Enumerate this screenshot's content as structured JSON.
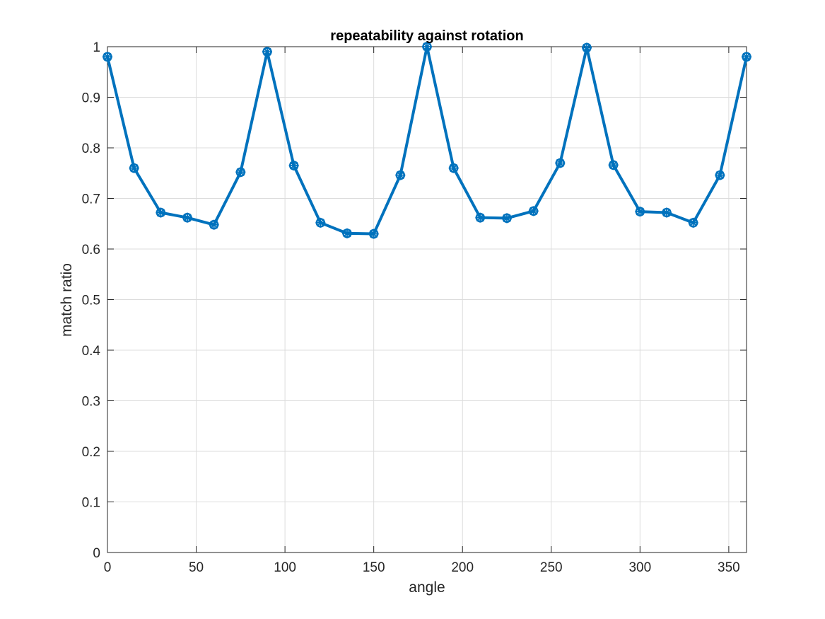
{
  "chart_data": {
    "type": "line",
    "title": "repeatability against rotation",
    "xlabel": "angle",
    "ylabel": "match ratio",
    "xlim": [
      0,
      360
    ],
    "ylim": [
      0,
      1
    ],
    "xticks": [
      0,
      50,
      100,
      150,
      200,
      250,
      300,
      350
    ],
    "yticks": [
      0,
      0.1,
      0.2,
      0.3,
      0.4,
      0.5,
      0.6,
      0.7,
      0.8,
      0.9,
      1
    ],
    "grid": true,
    "box": true,
    "line_color": "#0072BD",
    "marker": "circle-asterisk",
    "series": [
      {
        "x": [
          0,
          15,
          30,
          45,
          60,
          75,
          90,
          105,
          120,
          135,
          150,
          165,
          180,
          195,
          210,
          225,
          240,
          255,
          270,
          285,
          300,
          315,
          330,
          345,
          360
        ],
        "values": [
          0.98,
          0.76,
          0.672,
          0.662,
          0.648,
          0.752,
          0.99,
          0.765,
          0.652,
          0.631,
          0.63,
          0.746,
          1.0,
          0.76,
          0.662,
          0.661,
          0.675,
          0.77,
          0.998,
          0.766,
          0.674,
          0.672,
          0.652,
          0.746,
          0.98
        ]
      }
    ]
  }
}
